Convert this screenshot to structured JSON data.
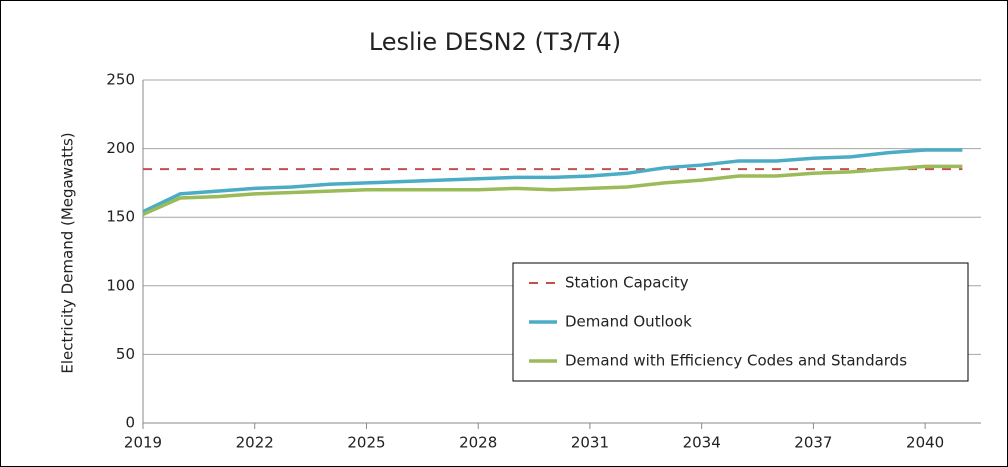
{
  "chart_data": {
    "type": "line",
    "title": "Leslie DESN2 (T3/T4)",
    "y_label": "Electricity Demand (Megawatts)",
    "x": [
      2019,
      2020,
      2021,
      2022,
      2023,
      2024,
      2025,
      2026,
      2027,
      2028,
      2029,
      2030,
      2031,
      2032,
      2033,
      2034,
      2035,
      2036,
      2037,
      2038,
      2039,
      2040,
      2041
    ],
    "series": [
      {
        "name": "Station Capacity",
        "color": "#c0504d",
        "dashed": true,
        "values": [
          185,
          185,
          185,
          185,
          185,
          185,
          185,
          185,
          185,
          185,
          185,
          185,
          185,
          185,
          185,
          185,
          185,
          185,
          185,
          185,
          185,
          185,
          185
        ]
      },
      {
        "name": "Demand Outlook",
        "color": "#4bacc6",
        "dashed": false,
        "values": [
          154,
          167,
          169,
          171,
          172,
          174,
          175,
          176,
          177,
          178,
          179,
          179,
          180,
          182,
          186,
          188,
          191,
          191,
          193,
          194,
          197,
          199,
          199
        ]
      },
      {
        "name": "Demand with Efficiency Codes and Standards",
        "color": "#9bbb59",
        "dashed": false,
        "values": [
          152,
          164,
          165,
          167,
          168,
          169,
          170,
          170,
          170,
          170,
          171,
          170,
          171,
          172,
          175,
          177,
          180,
          180,
          182,
          183,
          185,
          187,
          187
        ]
      }
    ],
    "xlim": [
      2019,
      2041.5
    ],
    "xticks": [
      2019,
      2022,
      2025,
      2028,
      2031,
      2034,
      2037,
      2040
    ],
    "ylim": [
      0,
      250
    ],
    "yticks": [
      0,
      50,
      100,
      150,
      200,
      250
    ],
    "grid": true,
    "legend": "lower right"
  }
}
